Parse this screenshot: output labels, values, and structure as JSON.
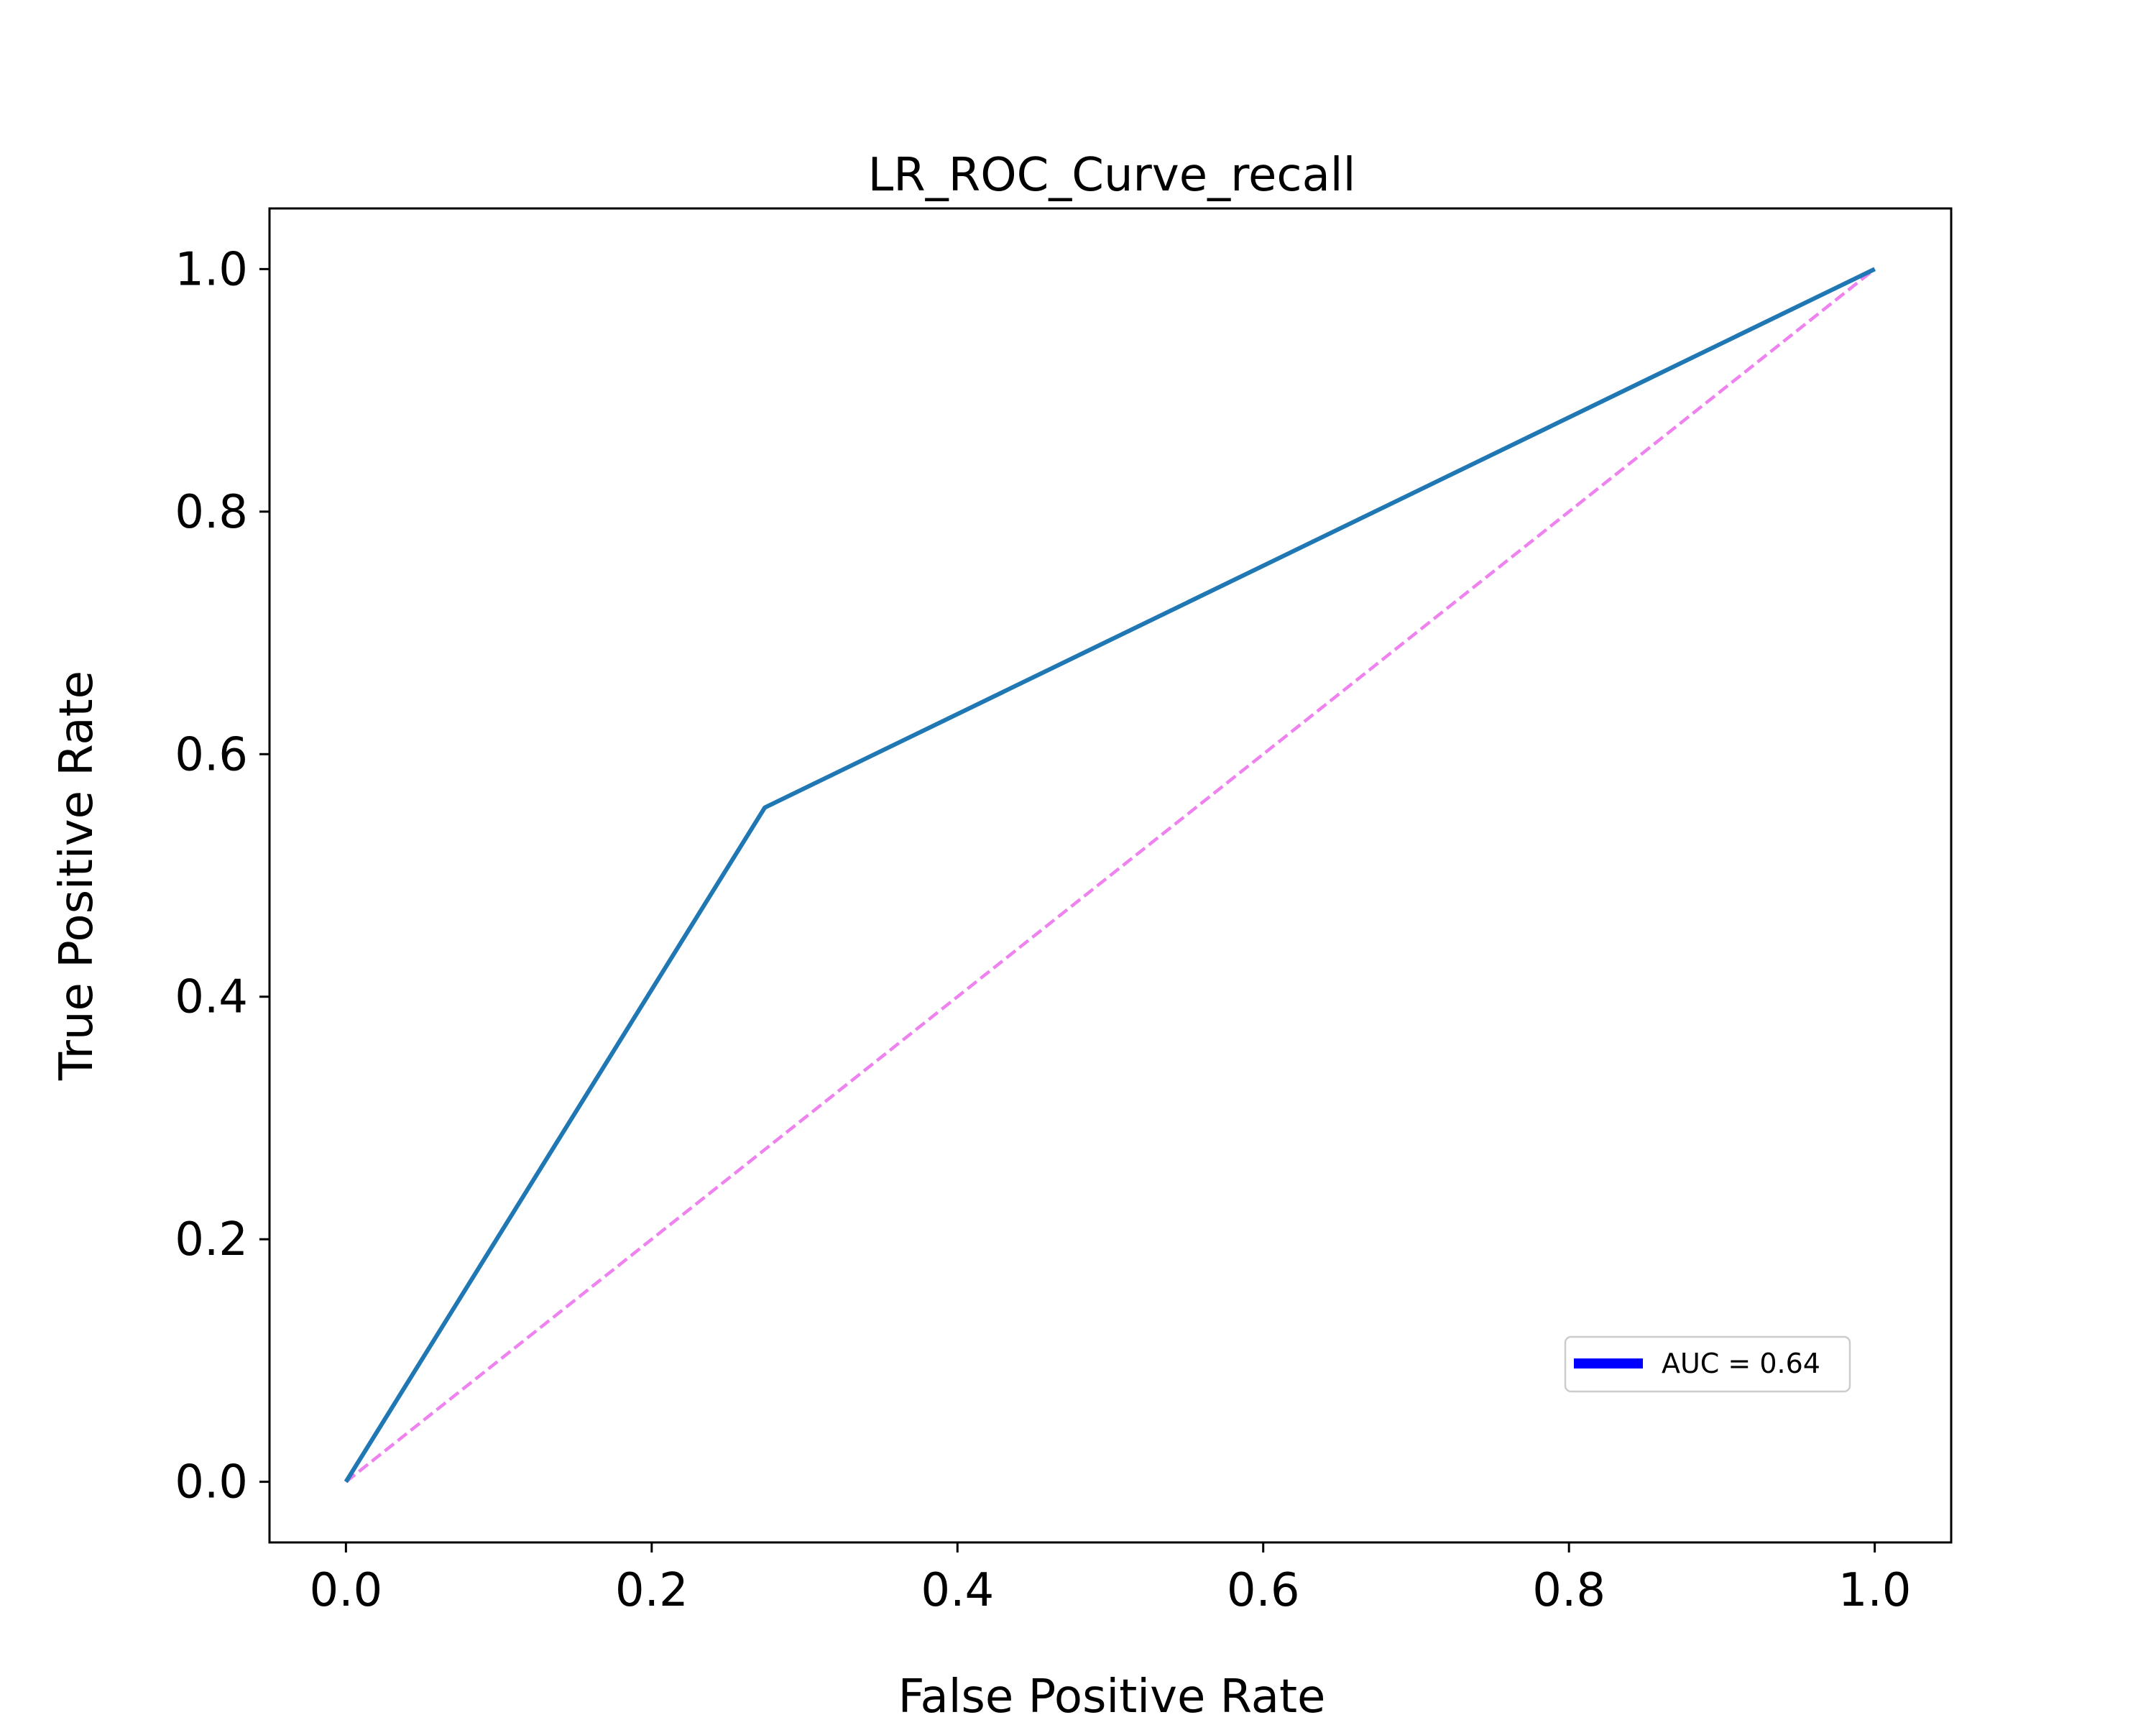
{
  "chart_data": {
    "type": "line",
    "title": "LR_ROC_Curve_recall",
    "xlabel": "False Positive Rate",
    "ylabel": "True Positive Rate",
    "xlim": [
      -0.05,
      1.05
    ],
    "ylim": [
      -0.05,
      1.05
    ],
    "xticks": [
      "0.0",
      "0.2",
      "0.4",
      "0.6",
      "0.8",
      "1.0"
    ],
    "yticks": [
      "0.0",
      "0.2",
      "0.4",
      "0.6",
      "0.8",
      "1.0"
    ],
    "grid": false,
    "legend_position": "lower-right",
    "series": [
      {
        "name": "AUC = 0.64",
        "x": [
          0.0,
          0.274,
          1.0
        ],
        "y": [
          0.0,
          0.556,
          1.0
        ],
        "color": "#1f77b4",
        "legend_color": "#0000ff",
        "style": "solid"
      },
      {
        "x": [
          0.0,
          1.0
        ],
        "y": [
          0.0,
          1.0
        ],
        "color": "#ee82ee",
        "style": "dashed"
      }
    ]
  }
}
